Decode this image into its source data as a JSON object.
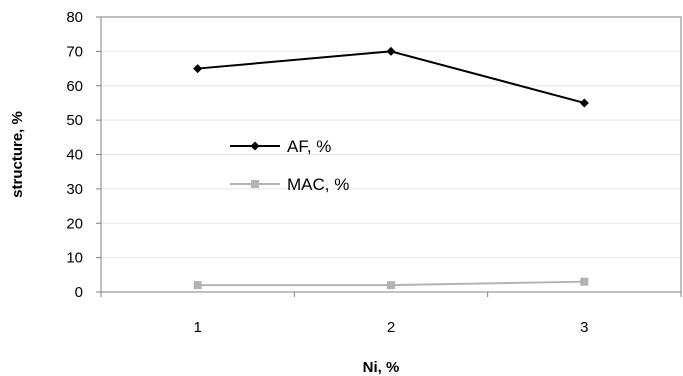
{
  "chart_data": {
    "type": "line",
    "categories": [
      "1",
      "2",
      "3"
    ],
    "series": [
      {
        "name": "AF, %",
        "values": [
          65,
          70,
          55
        ],
        "color": "#000000",
        "marker": "diamond"
      },
      {
        "name": "MAC, %",
        "values": [
          2,
          2,
          3
        ],
        "color": "#b3b3b3",
        "marker": "square"
      }
    ],
    "title": "",
    "xlabel": "Ni, %",
    "ylabel": "structure, %",
    "ylim": [
      0,
      80
    ],
    "yticks": [
      "0",
      "10",
      "20",
      "30",
      "40",
      "50",
      "60",
      "70",
      "80"
    ],
    "grid": true,
    "legend": "inside-left"
  }
}
